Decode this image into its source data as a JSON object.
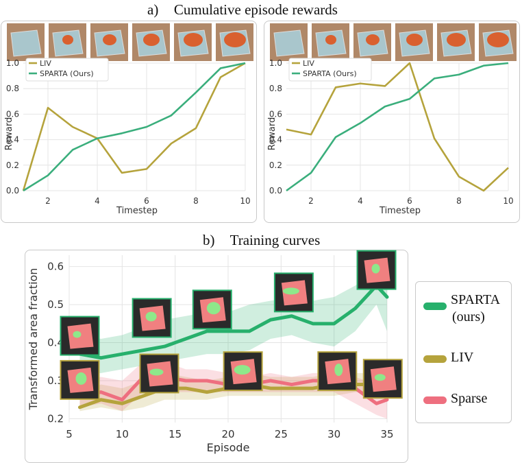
{
  "figure": {
    "section_a": {
      "label": "a)",
      "title": "Cumulative episode rewards"
    },
    "section_b": {
      "label": "b)",
      "title": "Training curves"
    }
  },
  "colors": {
    "sparta": "#3aae7c",
    "sparta_b": "#27b06c",
    "liv": "#b5a33c",
    "sparse": "#ee6f7f",
    "thumb_bg": "#2a2a2a",
    "thumb_red": "#f08080",
    "thumb_green": "#8ee88a"
  },
  "chart_data": [
    {
      "type": "line",
      "xlabel": "Timestep",
      "ylabel": "Reward",
      "xlim": [
        1,
        10
      ],
      "ylim": [
        0,
        1.0
      ],
      "xticks": [
        2,
        4,
        6,
        8,
        10
      ],
      "yticks": [
        0.0,
        0.2,
        0.4,
        0.6,
        0.8,
        1.0
      ],
      "tick_labels_y": [
        "0.0",
        "0.2",
        "0.4",
        "0.6",
        "0.8",
        "1.0"
      ],
      "tick_labels_x": [
        "2",
        "4",
        "6",
        "8",
        "10"
      ],
      "legend": "top-left",
      "x": [
        1,
        2,
        3,
        4,
        5,
        6,
        7,
        8,
        9,
        10
      ],
      "series": [
        {
          "name": "LIV",
          "color": "#b5a33c",
          "values": [
            0.0,
            0.65,
            0.5,
            0.41,
            0.14,
            0.17,
            0.37,
            0.49,
            0.89,
            1.0
          ]
        },
        {
          "name": "SPARTA (Ours)",
          "color": "#3aae7c",
          "values": [
            0.0,
            0.12,
            0.32,
            0.41,
            0.45,
            0.5,
            0.59,
            0.77,
            0.96,
            1.0
          ]
        }
      ]
    },
    {
      "type": "line",
      "xlabel": "Timestep",
      "ylabel": "Reward",
      "xlim": [
        1,
        10
      ],
      "ylim": [
        0,
        1.0
      ],
      "xticks": [
        2,
        4,
        6,
        8,
        10
      ],
      "yticks": [
        0.0,
        0.2,
        0.4,
        0.6,
        0.8,
        1.0
      ],
      "tick_labels_y": [
        "0.0",
        "0.2",
        "0.4",
        "0.6",
        "0.8",
        "1.0"
      ],
      "tick_labels_x": [
        "2",
        "4",
        "6",
        "8",
        "10"
      ],
      "legend": "top-left",
      "x": [
        1,
        2,
        3,
        4,
        5,
        6,
        7,
        8,
        9,
        10
      ],
      "series": [
        {
          "name": "LIV",
          "color": "#b5a33c",
          "values": [
            0.48,
            0.44,
            0.81,
            0.84,
            0.82,
            1.0,
            0.41,
            0.11,
            0.0,
            0.18
          ]
        },
        {
          "name": "SPARTA (Ours)",
          "color": "#3aae7c",
          "values": [
            0.0,
            0.14,
            0.42,
            0.53,
            0.66,
            0.72,
            0.88,
            0.91,
            0.98,
            1.0
          ]
        }
      ]
    },
    {
      "type": "line",
      "xlabel": "Episode",
      "ylabel": "Transformed area fraction",
      "xlim": [
        5,
        35
      ],
      "ylim": [
        0.19,
        0.63
      ],
      "xticks": [
        5,
        10,
        15,
        20,
        25,
        30,
        35
      ],
      "yticks": [
        0.2,
        0.3,
        0.4,
        0.5,
        0.6
      ],
      "tick_labels_y": [
        "0.2",
        "0.3",
        "0.4",
        "0.5",
        "0.6"
      ],
      "tick_labels_x": [
        "5",
        "10",
        "15",
        "20",
        "25",
        "30",
        "35"
      ],
      "legend": "right, outside",
      "series": [
        {
          "name": "SPARTA\n(ours)",
          "legend_lines": [
            "SPARTA",
            "(ours)"
          ],
          "color": "#27b06c",
          "x": [
            6,
            8,
            10,
            12,
            14,
            16,
            18,
            20,
            22,
            24,
            26,
            28,
            30,
            32,
            34,
            35
          ],
          "values": [
            0.37,
            0.36,
            0.37,
            0.38,
            0.39,
            0.41,
            0.43,
            0.43,
            0.43,
            0.46,
            0.47,
            0.45,
            0.45,
            0.49,
            0.55,
            0.52
          ],
          "band_upper": [
            0.42,
            0.41,
            0.42,
            0.44,
            0.46,
            0.47,
            0.48,
            0.48,
            0.5,
            0.51,
            0.52,
            0.51,
            0.52,
            0.55,
            0.59,
            0.58
          ],
          "band_lower": [
            0.32,
            0.32,
            0.33,
            0.34,
            0.35,
            0.36,
            0.37,
            0.37,
            0.38,
            0.41,
            0.42,
            0.4,
            0.39,
            0.43,
            0.5,
            0.43
          ]
        },
        {
          "name": "LIV",
          "legend_lines": [
            "LIV"
          ],
          "color": "#b5a33c",
          "x": [
            6,
            8,
            10,
            12,
            14,
            16,
            18,
            20,
            22,
            24,
            26,
            28,
            30,
            32,
            34
          ],
          "values": [
            0.23,
            0.25,
            0.24,
            0.26,
            0.28,
            0.28,
            0.27,
            0.28,
            0.29,
            0.28,
            0.28,
            0.28,
            0.29,
            0.29,
            0.29
          ],
          "band_upper": [
            0.26,
            0.29,
            0.28,
            0.3,
            0.32,
            0.31,
            0.3,
            0.31,
            0.32,
            0.31,
            0.31,
            0.31,
            0.32,
            0.32,
            0.32
          ],
          "band_lower": [
            0.22,
            0.23,
            0.22,
            0.23,
            0.25,
            0.25,
            0.25,
            0.26,
            0.26,
            0.26,
            0.26,
            0.26,
            0.26,
            0.27,
            0.27
          ]
        },
        {
          "name": "Sparse",
          "legend_lines": [
            "Sparse"
          ],
          "color": "#ee6f7f",
          "x": [
            6,
            8,
            10,
            12,
            14,
            16,
            18,
            20,
            22,
            24,
            26,
            28,
            30,
            32,
            34,
            35
          ],
          "values": [
            0.26,
            0.27,
            0.25,
            0.31,
            0.31,
            0.3,
            0.3,
            0.29,
            0.29,
            0.3,
            0.29,
            0.3,
            0.3,
            0.28,
            0.24,
            0.25
          ],
          "band_upper": [
            0.3,
            0.31,
            0.3,
            0.35,
            0.35,
            0.33,
            0.33,
            0.32,
            0.31,
            0.32,
            0.31,
            0.32,
            0.32,
            0.31,
            0.29,
            0.28
          ],
          "band_lower": [
            0.23,
            0.24,
            0.22,
            0.27,
            0.27,
            0.27,
            0.27,
            0.27,
            0.27,
            0.27,
            0.27,
            0.27,
            0.27,
            0.24,
            0.21,
            0.2
          ]
        }
      ]
    }
  ]
}
